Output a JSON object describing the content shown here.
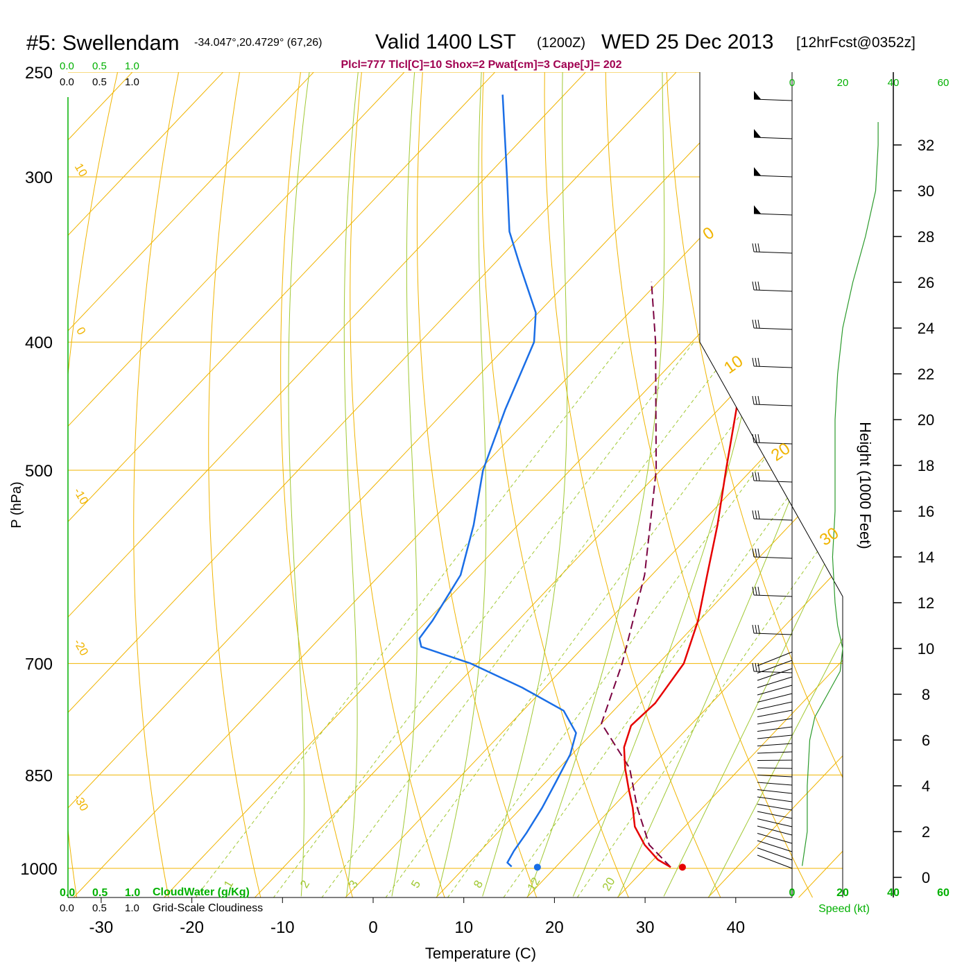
{
  "header": {
    "station": "#5: Swellendam",
    "coords": "-34.047°,20.4729° (67,26)",
    "valid_prefix": "Valid 1400 LST",
    "valid_z": "(1200Z)",
    "valid_date": "WED 25 Dec 2013",
    "forecast": "[12hrFcst@0352z]",
    "params": "Plcl=777 Tlcl[C]=10 Shox=2 Pwat[cm]=3 Cape[J]= 202"
  },
  "colors": {
    "temperature": "#e60000",
    "dewpoint": "#1a6ee6",
    "parcel": "#7a0040",
    "isobar": "#f0b400",
    "dry_adiabat": "#f0b400",
    "moist_adiabat": "#a0c832",
    "mixing_ratio": "#a0c832",
    "green_text": "#00b000",
    "params_text": "#a00050"
  },
  "left_scales": {
    "top_cloudwater": [
      "0.0",
      "0.5",
      "1.0"
    ],
    "top_cloudiness": [
      "0.0",
      "0.5",
      "1.0"
    ],
    "bottom_cloudwater": [
      "0.0",
      "0.5",
      "1.0"
    ],
    "bottom_cloudiness": [
      "0.0",
      "0.5",
      "1.0"
    ],
    "cloudwater_label": "CloudWater (g/Kg)",
    "cloudiness_label": "Grid-Scale Cloudiness"
  },
  "speed_scale": {
    "ticks": [
      "0",
      "20",
      "40",
      "60"
    ],
    "label": "Speed (kt)"
  },
  "chart_data": {
    "type": "line",
    "title": "Skew-T Sounding",
    "xlabel": "Temperature (C)",
    "ylabel": "P (hPa)",
    "ylabel_right": "Height (1000 Feet)",
    "x_ticks": [
      -30,
      -20,
      -10,
      0,
      10,
      20,
      30,
      40
    ],
    "y_ticks": [
      250,
      300,
      400,
      500,
      700,
      850,
      1000
    ],
    "height_ticks": [
      0,
      2,
      4,
      6,
      8,
      10,
      12,
      14,
      16,
      18,
      20,
      22,
      24,
      26,
      28,
      30,
      32
    ],
    "mixing_ratio_labels": [
      "1",
      "2",
      "3",
      "5",
      "8",
      "12",
      "20"
    ],
    "dry_adiabat_labels": [
      "10",
      "0",
      "-10",
      "-20",
      "-30"
    ],
    "moist_adiabat_labels": [
      "0",
      "10",
      "20",
      "30"
    ],
    "surface_temperature_C": 34,
    "surface_dewpoint_C": 18,
    "temperature_profile": [
      {
        "p": 998,
        "t": 32.7
      },
      {
        "p": 985,
        "t": 30.5
      },
      {
        "p": 960,
        "t": 27.5
      },
      {
        "p": 930,
        "t": 24.5
      },
      {
        "p": 900,
        "t": 22.3
      },
      {
        "p": 870,
        "t": 19.8
      },
      {
        "p": 840,
        "t": 17.3
      },
      {
        "p": 810,
        "t": 15.0
      },
      {
        "p": 780,
        "t": 13.5
      },
      {
        "p": 750,
        "t": 13.8
      },
      {
        "p": 700,
        "t": 12.8
      },
      {
        "p": 650,
        "t": 9.9
      },
      {
        "p": 600,
        "t": 6.1
      },
      {
        "p": 550,
        "t": 2.0
      },
      {
        "p": 500,
        "t": -2.8
      },
      {
        "p": 450,
        "t": -8.0
      },
      {
        "p": 400,
        "t": -14.0
      },
      {
        "p": 350,
        "t": -21.5
      },
      {
        "p": 300,
        "t": -30.0
      },
      {
        "p": 260,
        "t": -38.0
      }
    ],
    "dewpoint_profile": [
      {
        "p": 997,
        "t": 15.1
      },
      {
        "p": 990,
        "t": 14.2
      },
      {
        "p": 970,
        "t": 13.7
      },
      {
        "p": 940,
        "t": 13.2
      },
      {
        "p": 900,
        "t": 12.3
      },
      {
        "p": 860,
        "t": 11.1
      },
      {
        "p": 820,
        "t": 9.8
      },
      {
        "p": 790,
        "t": 8.2
      },
      {
        "p": 760,
        "t": 4.5
      },
      {
        "p": 730,
        "t": -2.5
      },
      {
        "p": 700,
        "t": -10.7
      },
      {
        "p": 680,
        "t": -17.9
      },
      {
        "p": 670,
        "t": -19.0
      },
      {
        "p": 650,
        "t": -19.4
      },
      {
        "p": 600,
        "t": -21.1
      },
      {
        "p": 550,
        "t": -24.9
      },
      {
        "p": 500,
        "t": -29.6
      },
      {
        "p": 450,
        "t": -33.5
      },
      {
        "p": 400,
        "t": -37.4
      },
      {
        "p": 380,
        "t": -40.3
      },
      {
        "p": 350,
        "t": -47.0
      },
      {
        "p": 330,
        "t": -51.7
      },
      {
        "p": 300,
        "t": -57.7
      },
      {
        "p": 260,
        "t": -66.8
      }
    ],
    "parcel_profile": [
      {
        "p": 998,
        "t": 32.7
      },
      {
        "p": 960,
        "t": 28.0
      },
      {
        "p": 900,
        "t": 22.8
      },
      {
        "p": 840,
        "t": 17.8
      },
      {
        "p": 777,
        "t": 10.0
      },
      {
        "p": 700,
        "t": 6.0
      },
      {
        "p": 600,
        "t": -0.8
      },
      {
        "p": 500,
        "t": -10.5
      },
      {
        "p": 400,
        "t": -24.0
      },
      {
        "p": 360,
        "t": -30.8
      }
    ],
    "wind_speed_profile_kt": [
      {
        "h": 0.5,
        "s": 4
      },
      {
        "h": 2,
        "s": 6
      },
      {
        "h": 4,
        "s": 6
      },
      {
        "h": 6,
        "s": 7
      },
      {
        "h": 7,
        "s": 9
      },
      {
        "h": 8,
        "s": 14
      },
      {
        "h": 9,
        "s": 19
      },
      {
        "h": 10,
        "s": 20
      },
      {
        "h": 11,
        "s": 18
      },
      {
        "h": 12,
        "s": 17
      },
      {
        "h": 14,
        "s": 16
      },
      {
        "h": 16,
        "s": 17
      },
      {
        "h": 18,
        "s": 17
      },
      {
        "h": 20,
        "s": 17
      },
      {
        "h": 22,
        "s": 18
      },
      {
        "h": 24,
        "s": 20
      },
      {
        "h": 26,
        "s": 24
      },
      {
        "h": 28,
        "s": 29
      },
      {
        "h": 30,
        "s": 33
      },
      {
        "h": 32,
        "s": 34
      },
      {
        "h": 33,
        "s": 34
      }
    ]
  }
}
